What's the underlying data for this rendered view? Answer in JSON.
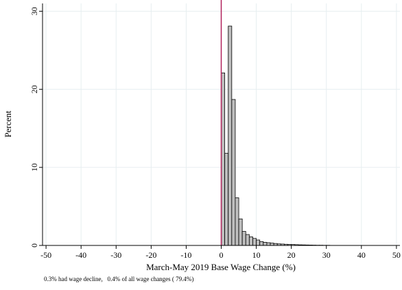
{
  "chart_data": {
    "type": "bar",
    "xlabel": "March-May 2019 Base Wage Change (%)",
    "ylabel": "Percent",
    "xlim": [
      -51,
      51
    ],
    "ylim": [
      0,
      31
    ],
    "x_ticks": [
      -50,
      -40,
      -30,
      -20,
      -10,
      0,
      10,
      20,
      30,
      40,
      50
    ],
    "y_ticks": [
      0,
      10,
      20,
      30
    ],
    "grid": true,
    "bin_width": 1,
    "reference_line": {
      "x": 0,
      "color": "#b0205a"
    },
    "bar_color": "#bfbfbf",
    "bar_edge_color": "#000000",
    "bins": [
      {
        "x0": 0,
        "x1": 1,
        "value": 22.1
      },
      {
        "x0": 1,
        "x1": 2,
        "value": 11.8
      },
      {
        "x0": 2,
        "x1": 3,
        "value": 28.1
      },
      {
        "x0": 3,
        "x1": 4,
        "value": 18.7
      },
      {
        "x0": 4,
        "x1": 5,
        "value": 6.1
      },
      {
        "x0": 5,
        "x1": 6,
        "value": 3.4
      },
      {
        "x0": 6,
        "x1": 7,
        "value": 1.8
      },
      {
        "x0": 7,
        "x1": 8,
        "value": 1.4
      },
      {
        "x0": 8,
        "x1": 9,
        "value": 1.1
      },
      {
        "x0": 9,
        "x1": 10,
        "value": 0.9
      },
      {
        "x0": 10,
        "x1": 11,
        "value": 0.7
      },
      {
        "x0": 11,
        "x1": 12,
        "value": 0.5
      },
      {
        "x0": 12,
        "x1": 13,
        "value": 0.4
      },
      {
        "x0": 13,
        "x1": 14,
        "value": 0.35
      },
      {
        "x0": 14,
        "x1": 15,
        "value": 0.3
      },
      {
        "x0": 15,
        "x1": 16,
        "value": 0.25
      },
      {
        "x0": 16,
        "x1": 17,
        "value": 0.2
      },
      {
        "x0": 17,
        "x1": 18,
        "value": 0.18
      },
      {
        "x0": 18,
        "x1": 19,
        "value": 0.15
      },
      {
        "x0": 19,
        "x1": 20,
        "value": 0.13
      },
      {
        "x0": 20,
        "x1": 21,
        "value": 0.12
      },
      {
        "x0": 21,
        "x1": 22,
        "value": 0.1
      },
      {
        "x0": 22,
        "x1": 23,
        "value": 0.08
      },
      {
        "x0": 23,
        "x1": 24,
        "value": 0.07
      },
      {
        "x0": 24,
        "x1": 25,
        "value": 0.06
      },
      {
        "x0": 25,
        "x1": 26,
        "value": 0.05
      },
      {
        "x0": 26,
        "x1": 27,
        "value": 0.04
      },
      {
        "x0": 27,
        "x1": 28,
        "value": 0.03
      },
      {
        "x0": 28,
        "x1": 29,
        "value": 0.03
      },
      {
        "x0": 29,
        "x1": 30,
        "value": 0.02
      },
      {
        "x0": 30,
        "x1": 31,
        "value": 0.02
      }
    ],
    "note": "0.3% had wage decline,   0.4% of all wage changes ( 79.4%)"
  }
}
